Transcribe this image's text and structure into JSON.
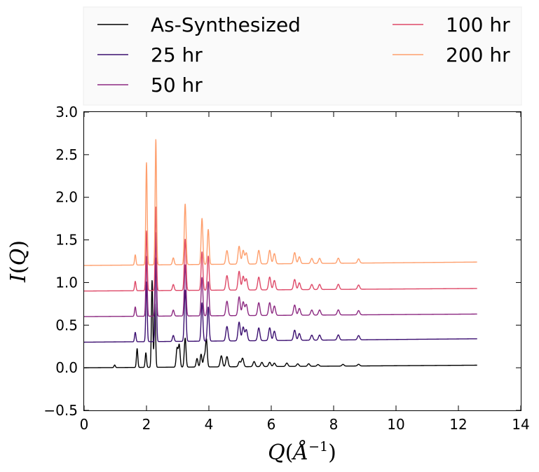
{
  "chart_data": {
    "type": "line",
    "title": "",
    "xlabel": "Q(Å^-1)",
    "ylabel": "I(Q)",
    "xlabel_parts": {
      "var": "Q",
      "unit": "Å",
      "exp": "−1"
    },
    "ylabel_parts": {
      "fn": "I",
      "var": "Q"
    },
    "xlim": [
      0,
      14
    ],
    "ylim": [
      -0.5,
      3.0
    ],
    "xticks": [
      0,
      2,
      4,
      6,
      8,
      10,
      12,
      14
    ],
    "yticks": [
      -0.5,
      0.0,
      0.5,
      1.0,
      1.5,
      2.0,
      2.5,
      3.0
    ],
    "xtick_labels": [
      "0",
      "2",
      "4",
      "6",
      "8",
      "10",
      "12",
      "14"
    ],
    "ytick_labels": [
      "−0.5",
      "0.0",
      "0.5",
      "1.0",
      "1.5",
      "2.0",
      "2.5",
      "3.0"
    ],
    "grid": false,
    "legend_position": "top (above plot), two columns",
    "x_range_data": [
      0.0,
      12.6
    ],
    "series": [
      {
        "name": "As-Synthesized",
        "color": "#000000",
        "baseline": 0.0,
        "end_value": 0.03,
        "peaks": [
          [
            0.98,
            0.03
          ],
          [
            1.7,
            0.22
          ],
          [
            1.98,
            0.17
          ],
          [
            2.18,
            1.02
          ],
          [
            2.27,
            0.75
          ],
          [
            2.98,
            0.22
          ],
          [
            3.05,
            0.26
          ],
          [
            3.24,
            0.34
          ],
          [
            3.62,
            0.1
          ],
          [
            3.75,
            0.15
          ],
          [
            3.85,
            0.12
          ],
          [
            3.92,
            0.33
          ],
          [
            4.4,
            0.13
          ],
          [
            4.58,
            0.12
          ],
          [
            4.98,
            0.06
          ],
          [
            5.08,
            0.1
          ],
          [
            5.45,
            0.06
          ],
          [
            5.7,
            0.05
          ],
          [
            5.95,
            0.05
          ],
          [
            6.1,
            0.04
          ],
          [
            6.5,
            0.04
          ],
          [
            6.85,
            0.03
          ],
          [
            7.2,
            0.03
          ],
          [
            7.5,
            0.02
          ],
          [
            8.3,
            0.02
          ],
          [
            8.8,
            0.02
          ]
        ]
      },
      {
        "name": "25 hr",
        "color": "#3b0f70",
        "baseline": 0.3,
        "end_value": 0.34,
        "peaks": [
          [
            1.64,
            0.41
          ],
          [
            2.0,
            1.0
          ],
          [
            2.3,
            1.28
          ],
          [
            2.86,
            0.37
          ],
          [
            3.24,
            0.9
          ],
          [
            3.78,
            0.75
          ],
          [
            3.98,
            0.7
          ],
          [
            4.58,
            0.47
          ],
          [
            4.97,
            0.52
          ],
          [
            5.1,
            0.46
          ],
          [
            5.2,
            0.43
          ],
          [
            5.6,
            0.45
          ],
          [
            5.95,
            0.45
          ],
          [
            6.1,
            0.41
          ],
          [
            6.75,
            0.42
          ],
          [
            6.9,
            0.38
          ],
          [
            7.3,
            0.36
          ],
          [
            7.55,
            0.36
          ],
          [
            8.15,
            0.36
          ],
          [
            8.8,
            0.35
          ]
        ]
      },
      {
        "name": "50 hr",
        "color": "#8c2981",
        "baseline": 0.6,
        "end_value": 0.63,
        "peaks": [
          [
            1.64,
            0.71
          ],
          [
            2.0,
            1.3
          ],
          [
            2.3,
            1.58
          ],
          [
            2.86,
            0.67
          ],
          [
            3.24,
            1.2
          ],
          [
            3.78,
            1.05
          ],
          [
            3.98,
            1.0
          ],
          [
            4.58,
            0.77
          ],
          [
            4.97,
            0.82
          ],
          [
            5.1,
            0.76
          ],
          [
            5.2,
            0.73
          ],
          [
            5.6,
            0.75
          ],
          [
            5.95,
            0.75
          ],
          [
            6.1,
            0.71
          ],
          [
            6.75,
            0.72
          ],
          [
            6.9,
            0.68
          ],
          [
            7.3,
            0.66
          ],
          [
            7.55,
            0.66
          ],
          [
            8.15,
            0.66
          ],
          [
            8.8,
            0.65
          ]
        ]
      },
      {
        "name": "100 hr",
        "color": "#de4968",
        "baseline": 0.9,
        "end_value": 0.93,
        "peaks": [
          [
            1.64,
            1.01
          ],
          [
            2.0,
            1.6
          ],
          [
            2.3,
            1.88
          ],
          [
            2.86,
            0.97
          ],
          [
            3.24,
            1.5
          ],
          [
            3.78,
            1.35
          ],
          [
            3.98,
            1.3
          ],
          [
            4.58,
            1.07
          ],
          [
            4.97,
            1.12
          ],
          [
            5.1,
            1.06
          ],
          [
            5.2,
            1.03
          ],
          [
            5.6,
            1.05
          ],
          [
            5.95,
            1.05
          ],
          [
            6.1,
            1.01
          ],
          [
            6.75,
            1.02
          ],
          [
            6.9,
            0.98
          ],
          [
            7.3,
            0.96
          ],
          [
            7.55,
            0.96
          ],
          [
            8.15,
            0.96
          ],
          [
            8.8,
            0.95
          ]
        ]
      },
      {
        "name": "200 hr",
        "color": "#fe9f6d",
        "baseline": 1.2,
        "end_value": 1.24,
        "peaks": [
          [
            1.64,
            1.32
          ],
          [
            2.0,
            2.4
          ],
          [
            2.3,
            2.67
          ],
          [
            2.86,
            1.28
          ],
          [
            3.24,
            1.91
          ],
          [
            3.78,
            1.74
          ],
          [
            3.98,
            1.61
          ],
          [
            4.58,
            1.36
          ],
          [
            4.97,
            1.41
          ],
          [
            5.1,
            1.36
          ],
          [
            5.2,
            1.33
          ],
          [
            5.6,
            1.36
          ],
          [
            5.95,
            1.36
          ],
          [
            6.1,
            1.32
          ],
          [
            6.75,
            1.33
          ],
          [
            6.9,
            1.28
          ],
          [
            7.3,
            1.26
          ],
          [
            7.55,
            1.26
          ],
          [
            8.15,
            1.26
          ],
          [
            8.8,
            1.25
          ]
        ]
      }
    ]
  }
}
